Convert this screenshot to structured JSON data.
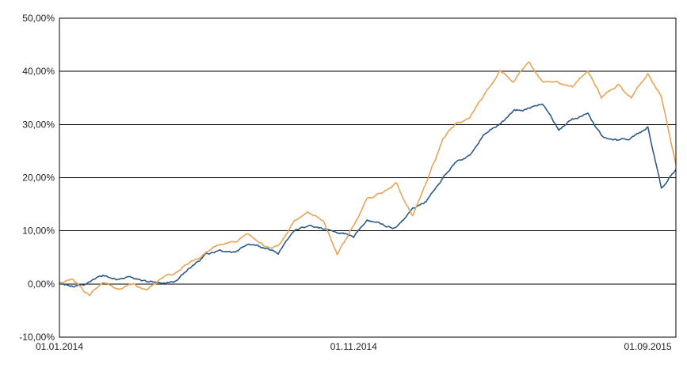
{
  "chart_data": {
    "type": "line",
    "title": "",
    "xlabel": "",
    "ylabel": "",
    "ylim": [
      -10,
      50
    ],
    "y_unit": "%",
    "grid": "horizontal",
    "y_ticks": [
      {
        "value": 50,
        "label": "50,00%"
      },
      {
        "value": 40,
        "label": "40,00%"
      },
      {
        "value": 30,
        "label": "30,00%"
      },
      {
        "value": 20,
        "label": "20,00%"
      },
      {
        "value": 10,
        "label": "10,00%"
      },
      {
        "value": 0,
        "label": "0,00%"
      },
      {
        "value": -10,
        "label": "-10,00%"
      }
    ],
    "xlim": [
      "2014-01-01",
      "2015-09-30"
    ],
    "x_ticks": [
      {
        "value": "2014-01-01",
        "label": "01.01.2014"
      },
      {
        "value": "2014-11-01",
        "label": "01.11.2014"
      },
      {
        "value": "2015-09-01",
        "label": "01.09.2015"
      }
    ],
    "series": [
      {
        "color": "#2e5a87",
        "x": [
          "2014-01-01",
          "2014-01-15",
          "2014-02-01",
          "2014-02-15",
          "2014-03-01",
          "2014-03-15",
          "2014-04-01",
          "2014-04-15",
          "2014-05-01",
          "2014-05-15",
          "2014-06-01",
          "2014-06-15",
          "2014-07-01",
          "2014-07-15",
          "2014-08-01",
          "2014-08-15",
          "2014-09-01",
          "2014-09-15",
          "2014-10-01",
          "2014-10-15",
          "2014-11-01",
          "2014-11-15",
          "2014-12-01",
          "2014-12-15",
          "2015-01-01",
          "2015-01-15",
          "2015-02-01",
          "2015-02-15",
          "2015-03-01",
          "2015-03-15",
          "2015-04-01",
          "2015-04-15",
          "2015-05-01",
          "2015-05-15",
          "2015-06-01",
          "2015-06-15",
          "2015-07-01",
          "2015-07-15",
          "2015-08-01",
          "2015-08-15",
          "2015-09-01",
          "2015-09-15",
          "2015-09-30"
        ],
        "values": [
          0.0,
          -0.5,
          0.5,
          1.5,
          1.0,
          1.5,
          0.5,
          0.5,
          0.5,
          3.0,
          5.5,
          6.5,
          6.0,
          7.5,
          6.5,
          5.5,
          10.0,
          11.0,
          10.5,
          10.0,
          9.0,
          12.0,
          11.0,
          10.5,
          14.0,
          15.5,
          20.0,
          23.0,
          24.5,
          28.0,
          30.0,
          32.5,
          33.0,
          34.0,
          29.0,
          31.0,
          32.0,
          28.0,
          27.0,
          27.5,
          29.5,
          18.0,
          21.5
        ]
      },
      {
        "color": "#e8a355",
        "x": [
          "2014-01-01",
          "2014-01-15",
          "2014-02-01",
          "2014-02-15",
          "2014-03-01",
          "2014-03-15",
          "2014-04-01",
          "2014-04-15",
          "2014-05-01",
          "2014-05-15",
          "2014-06-01",
          "2014-06-15",
          "2014-07-01",
          "2014-07-15",
          "2014-08-01",
          "2014-08-15",
          "2014-09-01",
          "2014-09-15",
          "2014-10-01",
          "2014-10-15",
          "2014-11-01",
          "2014-11-15",
          "2014-12-01",
          "2014-12-15",
          "2015-01-01",
          "2015-01-15",
          "2015-02-01",
          "2015-02-15",
          "2015-03-01",
          "2015-03-15",
          "2015-04-01",
          "2015-04-15",
          "2015-05-01",
          "2015-05-15",
          "2015-06-01",
          "2015-06-15",
          "2015-07-01",
          "2015-07-15",
          "2015-08-01",
          "2015-08-15",
          "2015-09-01",
          "2015-09-15",
          "2015-09-30"
        ],
        "values": [
          0.0,
          1.0,
          -2.0,
          0.5,
          -1.0,
          0.0,
          -1.0,
          1.0,
          2.0,
          4.0,
          6.0,
          7.5,
          7.5,
          9.5,
          7.0,
          7.0,
          12.0,
          13.5,
          12.0,
          5.5,
          11.0,
          16.0,
          17.0,
          19.0,
          13.0,
          19.0,
          27.0,
          30.0,
          31.0,
          35.0,
          40.0,
          38.0,
          42.0,
          38.0,
          38.0,
          37.0,
          40.0,
          35.0,
          37.5,
          35.0,
          39.5,
          35.5,
          22.5
        ]
      }
    ]
  }
}
